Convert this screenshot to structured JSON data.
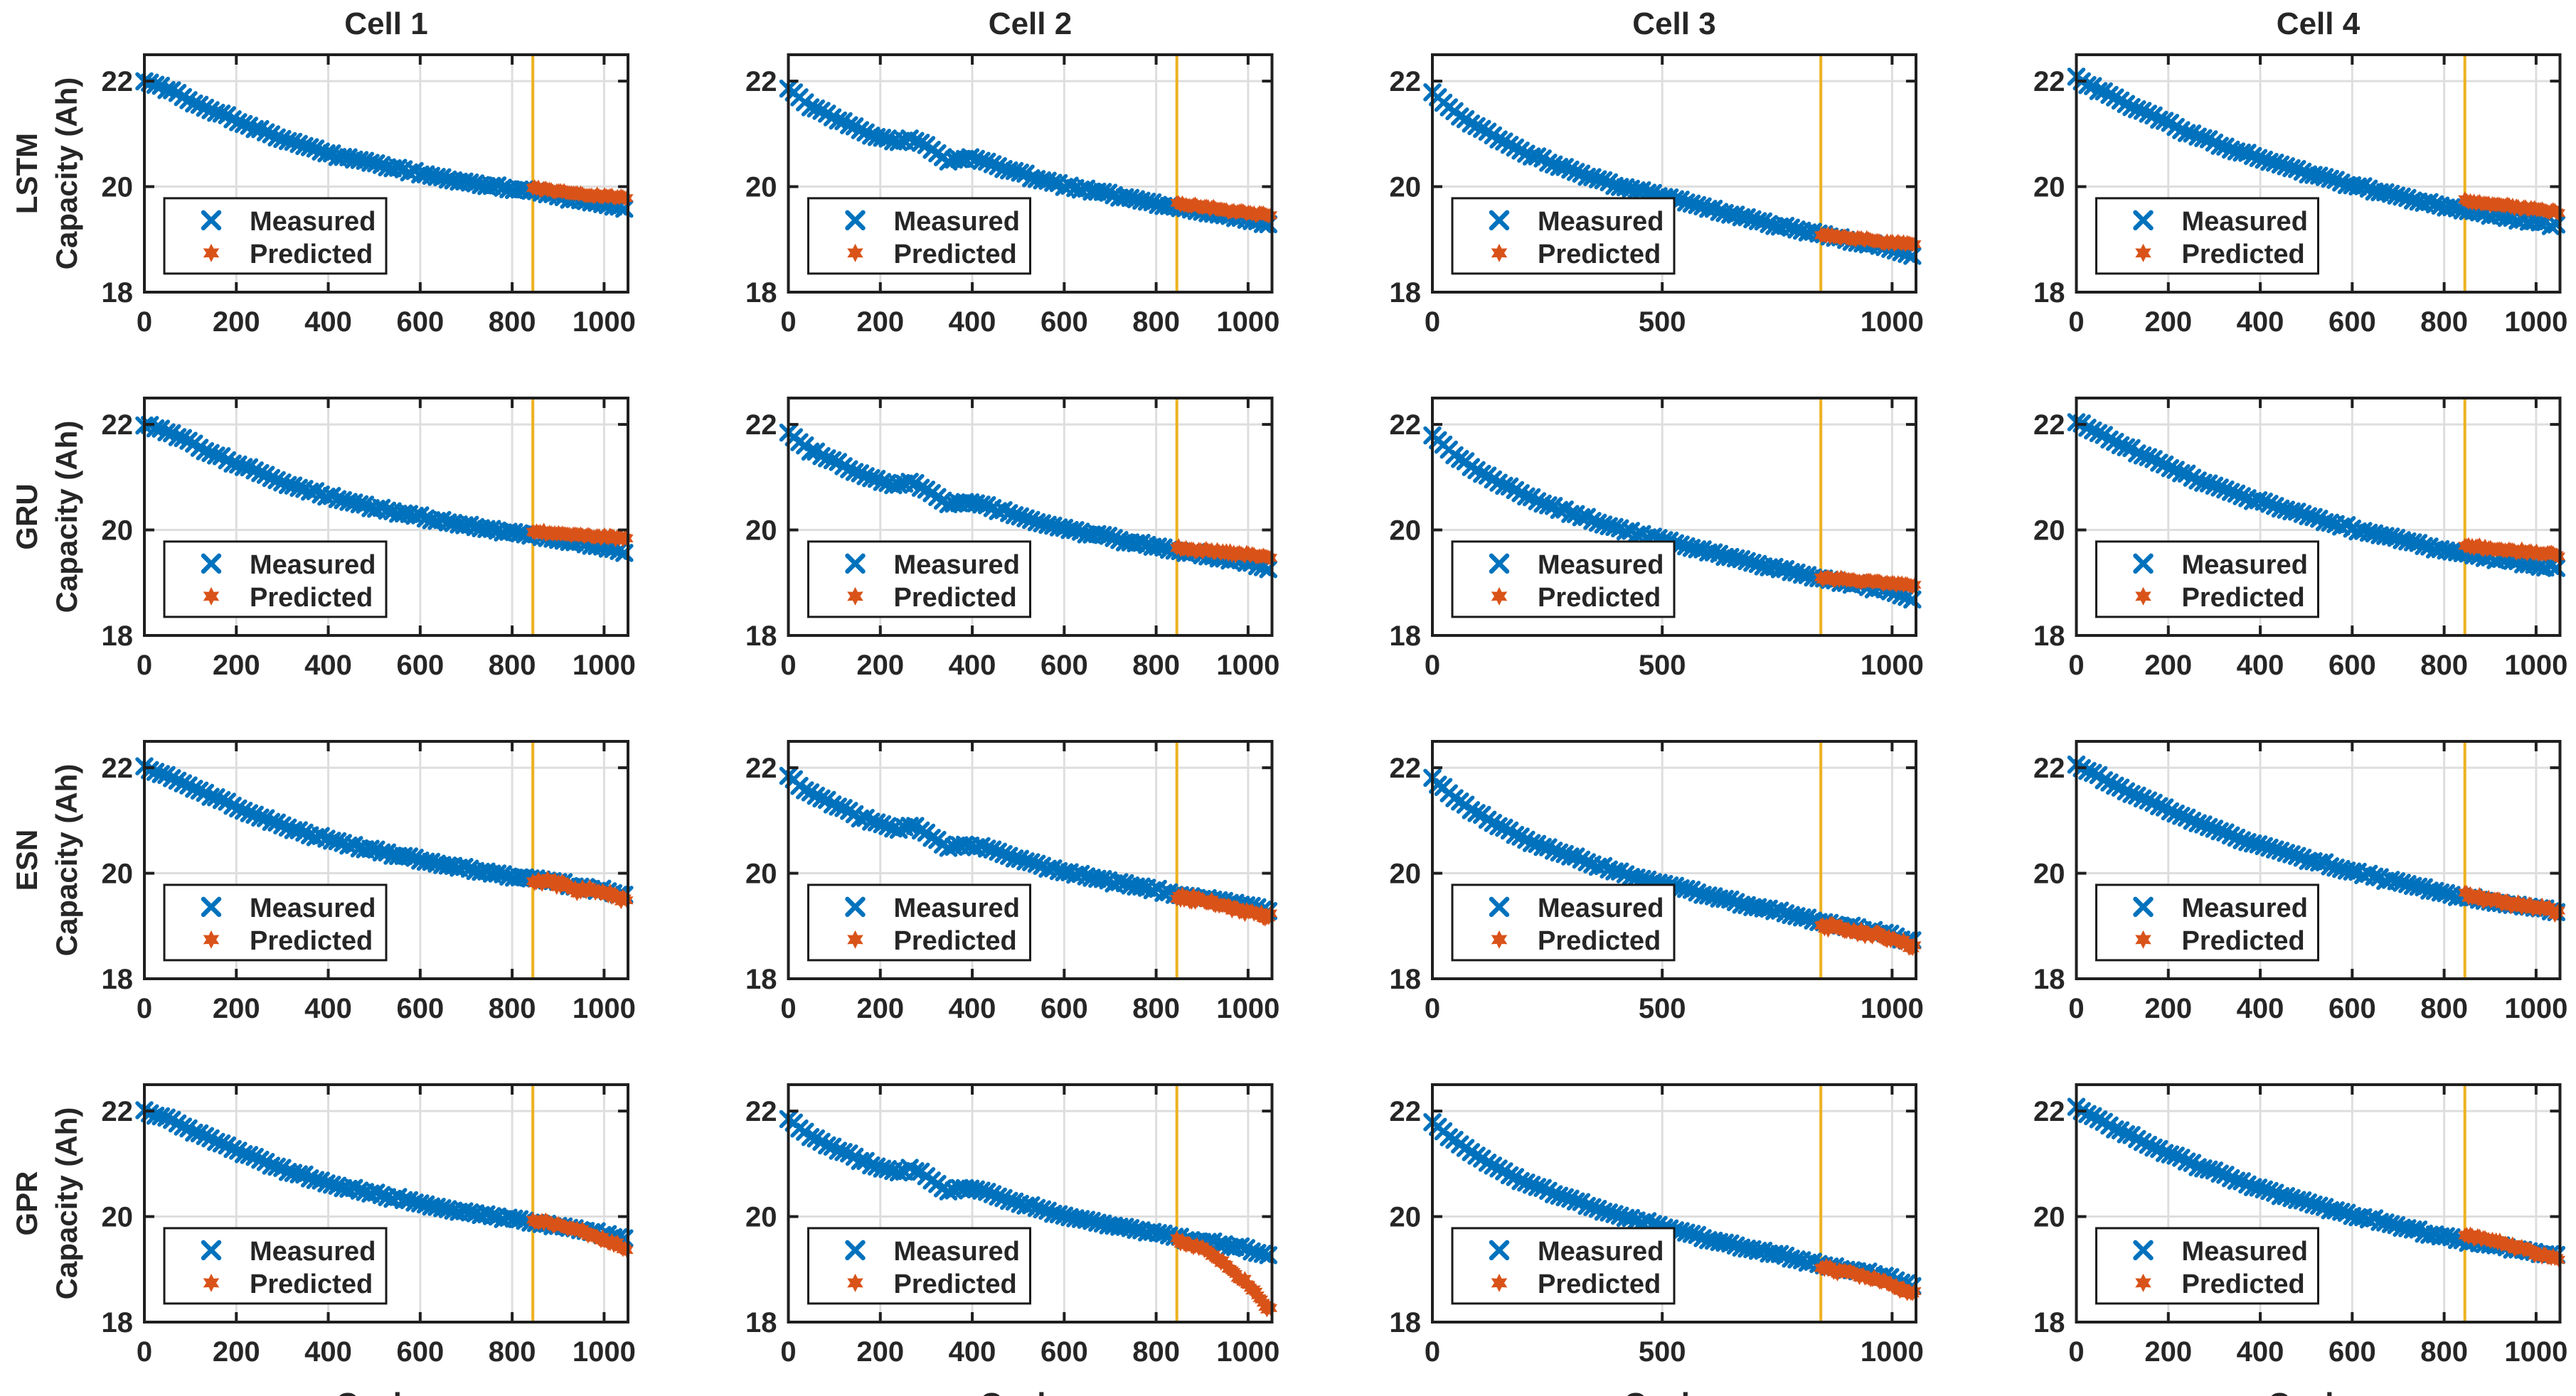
{
  "colors": {
    "measured": "#0072BD",
    "predicted": "#D95319",
    "split_line": "#EDB120",
    "axis": "#1F1F1F",
    "grid": "#DEDEDE",
    "text": "#262626",
    "background": "#FFFFFF"
  },
  "legend": {
    "measured": "Measured",
    "predicted": "Predicted",
    "position": "lower-left"
  },
  "chart_data": {
    "type": "scatter",
    "xlabel": "Cycles",
    "ylabel": "Capacity (Ah)",
    "xlim": [
      0,
      1052
    ],
    "ylim": [
      18,
      22.5
    ],
    "yticks": [
      22,
      20,
      18
    ],
    "grid": true,
    "split_line_x": 845,
    "measured_step": 12,
    "predicted_step": 4,
    "measured_noise": 0.018,
    "cells": [
      {
        "name": "Cell 1",
        "xticks": [
          0,
          200,
          400,
          600,
          800,
          1000
        ],
        "measured": [
          [
            0,
            22.0
          ],
          [
            60,
            21.82
          ],
          [
            120,
            21.55
          ],
          [
            180,
            21.33
          ],
          [
            240,
            21.12
          ],
          [
            300,
            20.9
          ],
          [
            360,
            20.74
          ],
          [
            420,
            20.59
          ],
          [
            480,
            20.47
          ],
          [
            540,
            20.36
          ],
          [
            600,
            20.25
          ],
          [
            660,
            20.14
          ],
          [
            720,
            20.06
          ],
          [
            780,
            19.98
          ],
          [
            845,
            19.9
          ],
          [
            900,
            19.82
          ],
          [
            960,
            19.73
          ],
          [
            1010,
            19.66
          ],
          [
            1050,
            19.58
          ]
        ]
      },
      {
        "name": "Cell 2",
        "xticks": [
          0,
          200,
          400,
          600,
          800,
          1000
        ],
        "measured": [
          [
            0,
            21.85
          ],
          [
            40,
            21.55
          ],
          [
            80,
            21.38
          ],
          [
            120,
            21.22
          ],
          [
            160,
            21.05
          ],
          [
            200,
            20.93
          ],
          [
            240,
            20.85
          ],
          [
            270,
            20.92
          ],
          [
            310,
            20.7
          ],
          [
            350,
            20.48
          ],
          [
            385,
            20.55
          ],
          [
            420,
            20.5
          ],
          [
            460,
            20.38
          ],
          [
            500,
            20.26
          ],
          [
            550,
            20.14
          ],
          [
            600,
            20.02
          ],
          [
            650,
            19.93
          ],
          [
            700,
            19.85
          ],
          [
            750,
            19.76
          ],
          [
            800,
            19.68
          ],
          [
            845,
            19.61
          ],
          [
            900,
            19.53
          ],
          [
            950,
            19.46
          ],
          [
            1000,
            19.38
          ],
          [
            1050,
            19.26
          ]
        ]
      },
      {
        "name": "Cell 3",
        "xticks": [
          0,
          500,
          1000
        ],
        "measured": [
          [
            0,
            21.78
          ],
          [
            50,
            21.42
          ],
          [
            100,
            21.12
          ],
          [
            150,
            20.88
          ],
          [
            200,
            20.65
          ],
          [
            250,
            20.48
          ],
          [
            300,
            20.32
          ],
          [
            350,
            20.17
          ],
          [
            400,
            20.03
          ],
          [
            450,
            19.92
          ],
          [
            500,
            19.82
          ],
          [
            550,
            19.7
          ],
          [
            600,
            19.58
          ],
          [
            650,
            19.47
          ],
          [
            700,
            19.37
          ],
          [
            750,
            19.27
          ],
          [
            800,
            19.17
          ],
          [
            845,
            19.09
          ],
          [
            900,
            19.0
          ],
          [
            950,
            18.92
          ],
          [
            1000,
            18.82
          ],
          [
            1050,
            18.68
          ]
        ]
      },
      {
        "name": "Cell 4",
        "xticks": [
          0,
          200,
          400,
          600,
          800,
          1000
        ],
        "measured": [
          [
            0,
            22.05
          ],
          [
            50,
            21.83
          ],
          [
            100,
            21.6
          ],
          [
            150,
            21.4
          ],
          [
            200,
            21.2
          ],
          [
            250,
            21.0
          ],
          [
            300,
            20.84
          ],
          [
            350,
            20.68
          ],
          [
            400,
            20.53
          ],
          [
            450,
            20.4
          ],
          [
            500,
            20.27
          ],
          [
            550,
            20.15
          ],
          [
            600,
            20.03
          ],
          [
            650,
            19.93
          ],
          [
            700,
            19.83
          ],
          [
            750,
            19.72
          ],
          [
            800,
            19.62
          ],
          [
            845,
            19.54
          ],
          [
            900,
            19.47
          ],
          [
            950,
            19.4
          ],
          [
            1000,
            19.33
          ],
          [
            1050,
            19.26
          ]
        ]
      }
    ],
    "models": [
      {
        "name": "LSTM",
        "noise": 0.02,
        "predicted": [
          [
            [
              845,
              19.97
            ],
            [
              950,
              19.86
            ],
            [
              1050,
              19.78
            ]
          ],
          [
            [
              845,
              19.68
            ],
            [
              950,
              19.55
            ],
            [
              1050,
              19.45
            ]
          ],
          [
            [
              845,
              19.08
            ],
            [
              950,
              18.99
            ],
            [
              1050,
              18.9
            ]
          ],
          [
            [
              845,
              19.73
            ],
            [
              950,
              19.62
            ],
            [
              1050,
              19.52
            ]
          ]
        ]
      },
      {
        "name": "GRU",
        "noise": 0.025,
        "predicted": [
          [
            [
              845,
              19.97
            ],
            [
              950,
              19.9
            ],
            [
              1050,
              19.84
            ]
          ],
          [
            [
              845,
              19.66
            ],
            [
              950,
              19.57
            ],
            [
              1050,
              19.5
            ]
          ],
          [
            [
              845,
              19.1
            ],
            [
              950,
              19.02
            ],
            [
              1050,
              18.94
            ]
          ],
          [
            [
              845,
              19.7
            ],
            [
              950,
              19.61
            ],
            [
              1050,
              19.53
            ]
          ]
        ]
      },
      {
        "name": "ESN",
        "noise": 0.05,
        "predicted": [
          [
            [
              845,
              19.88
            ],
            [
              950,
              19.7
            ],
            [
              1050,
              19.53
            ]
          ],
          [
            [
              845,
              19.58
            ],
            [
              950,
              19.38
            ],
            [
              1050,
              19.17
            ]
          ],
          [
            [
              845,
              19.03
            ],
            [
              950,
              18.85
            ],
            [
              1050,
              18.62
            ]
          ],
          [
            [
              845,
              19.6
            ],
            [
              950,
              19.44
            ],
            [
              1050,
              19.24
            ]
          ]
        ]
      },
      {
        "name": "GPR",
        "noise": 0.035,
        "predicted": [
          [
            [
              845,
              19.95
            ],
            [
              920,
              19.8
            ],
            [
              990,
              19.6
            ],
            [
              1050,
              19.38
            ]
          ],
          [
            [
              845,
              19.55
            ],
            [
              900,
              19.4
            ],
            [
              950,
              19.1
            ],
            [
              1000,
              18.7
            ],
            [
              1050,
              18.2
            ]
          ],
          [
            [
              845,
              19.05
            ],
            [
              950,
              18.85
            ],
            [
              1050,
              18.55
            ]
          ],
          [
            [
              845,
              19.65
            ],
            [
              950,
              19.45
            ],
            [
              1050,
              19.17
            ]
          ]
        ]
      }
    ]
  }
}
